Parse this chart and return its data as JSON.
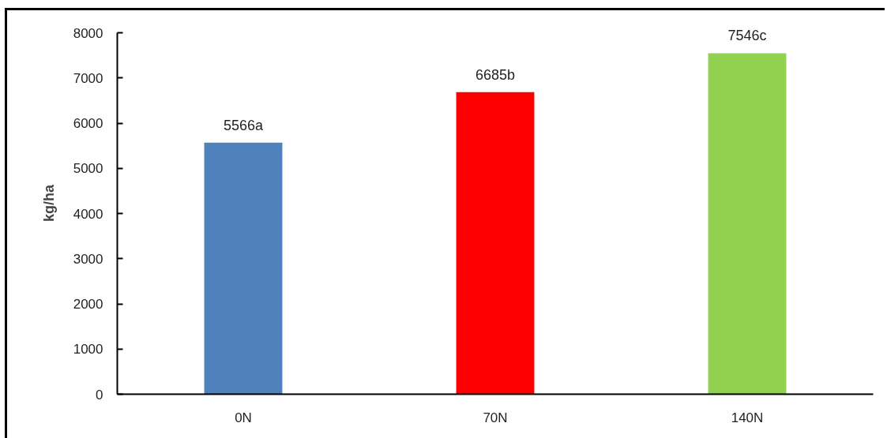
{
  "chart_data": {
    "type": "bar",
    "ylabel": "kg/ha",
    "categories": [
      "0N",
      "70N",
      "140N"
    ],
    "values": [
      5566,
      6685,
      7546
    ],
    "value_labels": [
      "5566a",
      "6685b",
      "7546c"
    ],
    "colors": [
      "#4f81bd",
      "#ff0000",
      "#92d050"
    ],
    "ylim": [
      0,
      8000
    ],
    "yticks": [
      0,
      1000,
      2000,
      3000,
      4000,
      5000,
      6000,
      7000,
      8000
    ]
  }
}
